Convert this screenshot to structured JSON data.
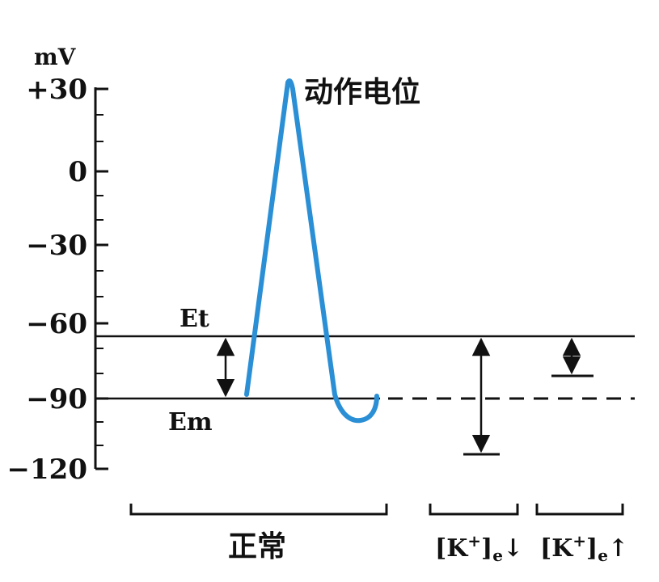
{
  "axis": {
    "unit": "mV",
    "ticks": [
      "+30",
      "0",
      "−30",
      "−60",
      "−90",
      "−120"
    ]
  },
  "labels": {
    "action_potential": "动作电位",
    "et": "Et",
    "em": "Em",
    "normal": "正常"
  },
  "conditions": {
    "k_low": {
      "base": "[K",
      "sup": "+",
      "close": "]",
      "sub": "e",
      "arrow": "↓"
    },
    "k_high": {
      "base": "[K",
      "sup": "+",
      "close": "]",
      "sub": "e",
      "arrow": "↑"
    }
  },
  "colors": {
    "curve": "#2b8fd6",
    "ink": "#111111"
  }
}
